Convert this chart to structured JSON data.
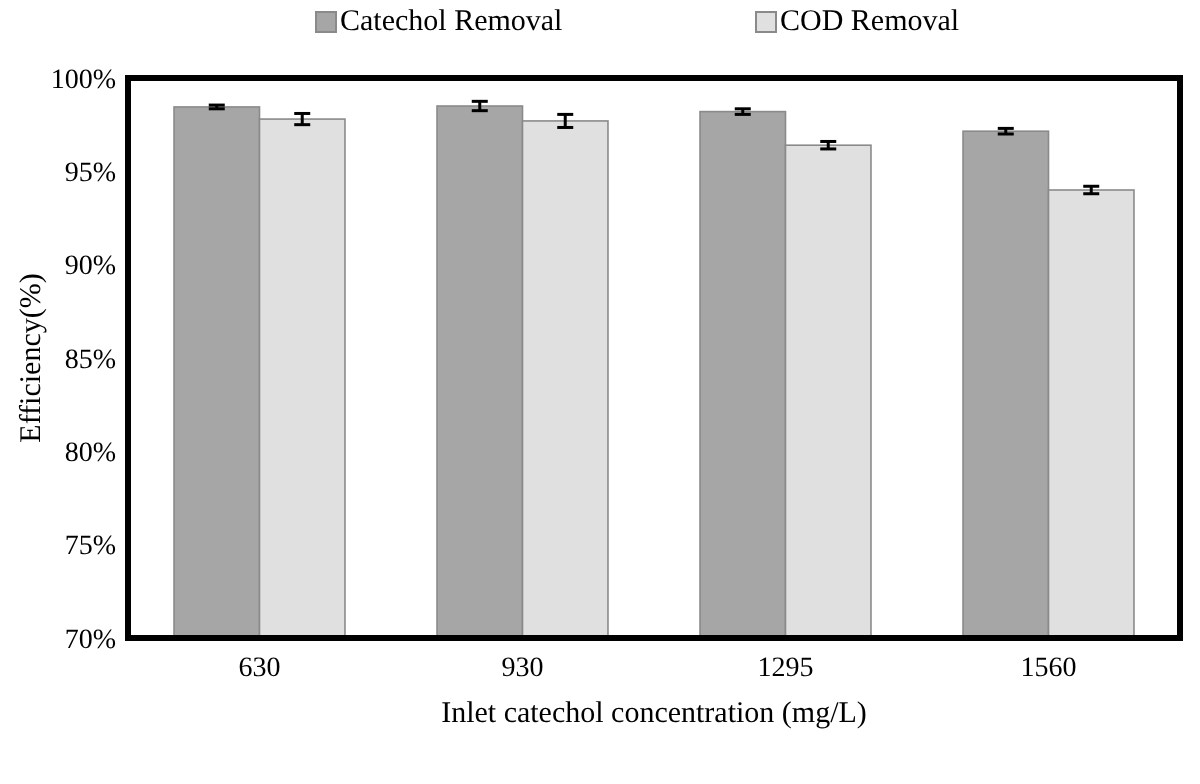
{
  "chart_data": {
    "type": "bar",
    "xlabel": "Inlet catechol concentration (mg/L)",
    "ylabel": "Efficiency(%)",
    "categories": [
      "630",
      "930",
      "1295",
      "1560"
    ],
    "series": [
      {
        "name": "Catechol Removal",
        "color": "#a6a6a6",
        "values": [
          98.45,
          98.5,
          98.2,
          97.15
        ],
        "errors": [
          0.1,
          0.25,
          0.15,
          0.15
        ]
      },
      {
        "name": "COD Removal",
        "color": "#e0e0e0",
        "values": [
          97.8,
          97.7,
          96.4,
          94.0
        ],
        "errors": [
          0.3,
          0.35,
          0.2,
          0.2
        ]
      }
    ],
    "ylim": [
      70,
      100
    ],
    "yticks": [
      {
        "value": 70,
        "label": "70%"
      },
      {
        "value": 75,
        "label": "75%"
      },
      {
        "value": 80,
        "label": "80%"
      },
      {
        "value": 85,
        "label": "85%"
      },
      {
        "value": 90,
        "label": "90%"
      },
      {
        "value": 95,
        "label": "95%"
      },
      {
        "value": 100,
        "label": "100%"
      }
    ],
    "grid": false,
    "legend": "top"
  }
}
